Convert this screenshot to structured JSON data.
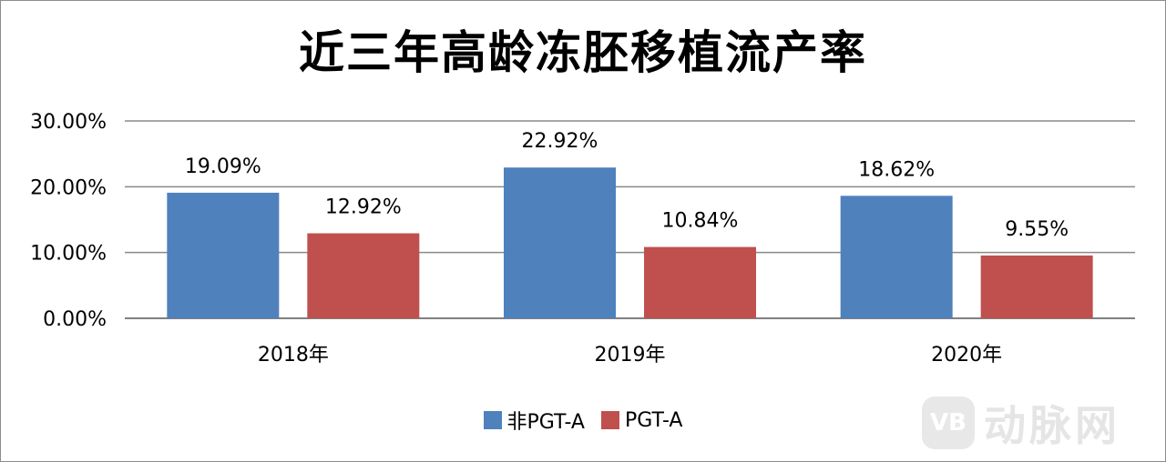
{
  "chart_data": {
    "type": "bar",
    "title": "近三年高龄冻胚移植流产率",
    "categories": [
      "2018年",
      "2019年",
      "2020年"
    ],
    "series": [
      {
        "name": "非PGT-A",
        "values": [
          19.09,
          22.92,
          18.62
        ],
        "labels": [
          "19.09%",
          "22.92%",
          "18.62%"
        ],
        "color": "#4f81bd"
      },
      {
        "name": "PGT-A",
        "values": [
          12.92,
          10.84,
          9.55
        ],
        "labels": [
          "12.92%",
          "10.84%",
          "9.55%"
        ],
        "color": "#c0504d"
      }
    ],
    "yticks": [
      "0.00%",
      "10.00%",
      "20.00%",
      "30.00%"
    ],
    "ylim": [
      0,
      30
    ],
    "grid": true,
    "legend": "bottom"
  },
  "watermark": {
    "logo": "VB",
    "text": "动脉网"
  }
}
